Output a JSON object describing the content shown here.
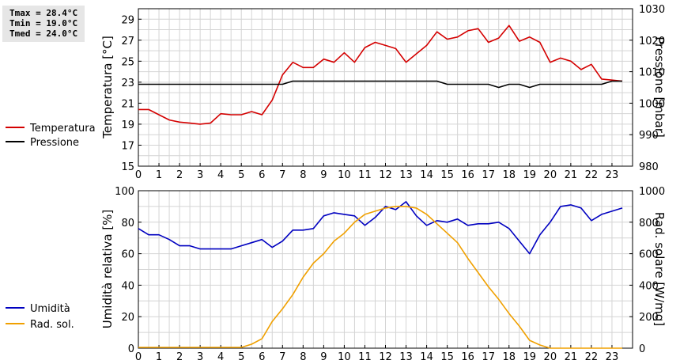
{
  "stats": {
    "tmax": "Tmax = 28.4°C",
    "tmin": "Tmin = 19.0°C",
    "tmed": "Tmed = 24.0°C"
  },
  "colors": {
    "temperature": "#d40000",
    "pressure": "#000000",
    "humidity": "#0000c0",
    "radiation": "#f0a000",
    "grid": "#d4d4d4"
  },
  "chart_data": [
    {
      "type": "line",
      "x_ticks": [
        "0",
        "1",
        "2",
        "3",
        "4",
        "5",
        "6",
        "7",
        "8",
        "9",
        "10",
        "11",
        "12",
        "13",
        "14",
        "15",
        "16",
        "17",
        "18",
        "19",
        "20",
        "21",
        "22",
        "23"
      ],
      "xlim": [
        0,
        24
      ],
      "ylabel": "Temperatura [°C]",
      "ylim": [
        15,
        30
      ],
      "y_ticks": [
        "15",
        "17",
        "19",
        "21",
        "23",
        "25",
        "27",
        "29"
      ],
      "y2label": "Pressione [mbar]",
      "y2lim": [
        980,
        1030
      ],
      "y2_ticks": [
        "980",
        "990",
        "1000",
        "1010",
        "1020",
        "1030"
      ],
      "grid": true,
      "legend_position": "left",
      "series": [
        {
          "name": "Temperatura",
          "axis": "left",
          "x": [
            0,
            0.5,
            1,
            1.5,
            2,
            2.5,
            3,
            3.5,
            4,
            4.5,
            5,
            5.5,
            6,
            6.5,
            7,
            7.5,
            8,
            8.5,
            9,
            9.5,
            10,
            10.5,
            11,
            11.5,
            12,
            12.5,
            13,
            13.5,
            14,
            14.5,
            15,
            15.5,
            16,
            16.5,
            17,
            17.5,
            18,
            18.5,
            19,
            19.5,
            20,
            20.5,
            21,
            21.5,
            22,
            22.5,
            23,
            23.5
          ],
          "values": [
            20.4,
            20.4,
            19.9,
            19.4,
            19.2,
            19.1,
            19.0,
            19.1,
            20.0,
            19.9,
            19.9,
            20.2,
            19.9,
            21.3,
            23.7,
            24.9,
            24.4,
            24.4,
            25.2,
            24.9,
            25.8,
            24.9,
            26.3,
            26.8,
            26.5,
            26.2,
            24.9,
            25.7,
            26.5,
            27.8,
            27.1,
            27.3,
            27.9,
            28.1,
            26.8,
            27.2,
            28.4,
            26.9,
            27.3,
            26.8,
            24.9,
            25.3,
            25.0,
            24.2,
            24.7,
            23.3,
            23.2,
            23.1
          ]
        },
        {
          "name": "Pressione",
          "axis": "right",
          "x": [
            0,
            0.5,
            1,
            1.5,
            2,
            2.5,
            3,
            3.5,
            4,
            4.5,
            5,
            5.5,
            6,
            6.5,
            7,
            7.5,
            8,
            8.5,
            9,
            9.5,
            10,
            10.5,
            11,
            11.5,
            12,
            12.5,
            13,
            13.5,
            14,
            14.5,
            15,
            15.5,
            16,
            16.5,
            17,
            17.5,
            18,
            18.5,
            19,
            19.5,
            20,
            20.5,
            21,
            21.5,
            22,
            22.5,
            23,
            23.5
          ],
          "values": [
            1006,
            1006,
            1006,
            1006,
            1006,
            1006,
            1006,
            1006,
            1006,
            1006,
            1006,
            1006,
            1006,
            1006,
            1006,
            1007,
            1007,
            1007,
            1007,
            1007,
            1007,
            1007,
            1007,
            1007,
            1007,
            1007,
            1007,
            1007,
            1007,
            1007,
            1006,
            1006,
            1006,
            1006,
            1006,
            1005,
            1006,
            1006,
            1005,
            1006,
            1006,
            1006,
            1006,
            1006,
            1006,
            1006,
            1007,
            1007
          ]
        }
      ]
    },
    {
      "type": "line",
      "x_ticks": [
        "0",
        "1",
        "2",
        "3",
        "4",
        "5",
        "6",
        "7",
        "8",
        "9",
        "10",
        "11",
        "12",
        "13",
        "14",
        "15",
        "16",
        "17",
        "18",
        "19",
        "20",
        "21",
        "22",
        "23"
      ],
      "xlim": [
        0,
        24
      ],
      "ylabel": "Umidità relativa [%]",
      "ylim": [
        0,
        100
      ],
      "y_ticks": [
        "0",
        "20",
        "40",
        "60",
        "80",
        "100"
      ],
      "y2label": "Rad. solare [W/mq]",
      "y2lim": [
        0,
        1000
      ],
      "y2_ticks": [
        "0",
        "200",
        "400",
        "600",
        "800",
        "1000"
      ],
      "grid": true,
      "legend_position": "left",
      "series": [
        {
          "name": "Umidità",
          "axis": "left",
          "x": [
            0,
            0.5,
            1,
            1.5,
            2,
            2.5,
            3,
            3.5,
            4,
            4.5,
            5,
            5.5,
            6,
            6.5,
            7,
            7.5,
            8,
            8.5,
            9,
            9.5,
            10,
            10.5,
            11,
            11.5,
            12,
            12.5,
            13,
            13.5,
            14,
            14.5,
            15,
            15.5,
            16,
            16.5,
            17,
            17.5,
            18,
            18.5,
            19,
            19.5,
            20,
            20.5,
            21,
            21.5,
            22,
            22.5,
            23,
            23.5
          ],
          "values": [
            76,
            72,
            72,
            69,
            65,
            65,
            63,
            63,
            63,
            63,
            65,
            67,
            69,
            64,
            68,
            75,
            75,
            76,
            84,
            86,
            85,
            84,
            78,
            83,
            90,
            88,
            93,
            84,
            78,
            81,
            80,
            82,
            78,
            79,
            79,
            80,
            76,
            68,
            60,
            72,
            80,
            90,
            91,
            89,
            81,
            85,
            87,
            89
          ]
        },
        {
          "name": "Rad. sol.",
          "axis": "right",
          "x": [
            0,
            0.5,
            1,
            1.5,
            2,
            2.5,
            3,
            3.5,
            4,
            4.5,
            5,
            5.5,
            6,
            6.5,
            7,
            7.5,
            8,
            8.5,
            9,
            9.5,
            10,
            10.5,
            11,
            11.5,
            12,
            12.5,
            13,
            13.5,
            14,
            14.5,
            15,
            15.5,
            16,
            16.5,
            17,
            17.5,
            18,
            18.5,
            19,
            19.5,
            20,
            20.5,
            21,
            21.5,
            22,
            22.5,
            23,
            23.5
          ],
          "values": [
            5,
            5,
            5,
            5,
            5,
            5,
            5,
            5,
            5,
            5,
            5,
            25,
            60,
            170,
            250,
            340,
            450,
            540,
            600,
            680,
            730,
            800,
            850,
            870,
            890,
            900,
            900,
            890,
            850,
            790,
            730,
            670,
            570,
            480,
            390,
            310,
            220,
            140,
            50,
            20,
            0,
            0,
            0,
            0,
            0,
            0,
            0,
            0
          ]
        }
      ]
    }
  ]
}
